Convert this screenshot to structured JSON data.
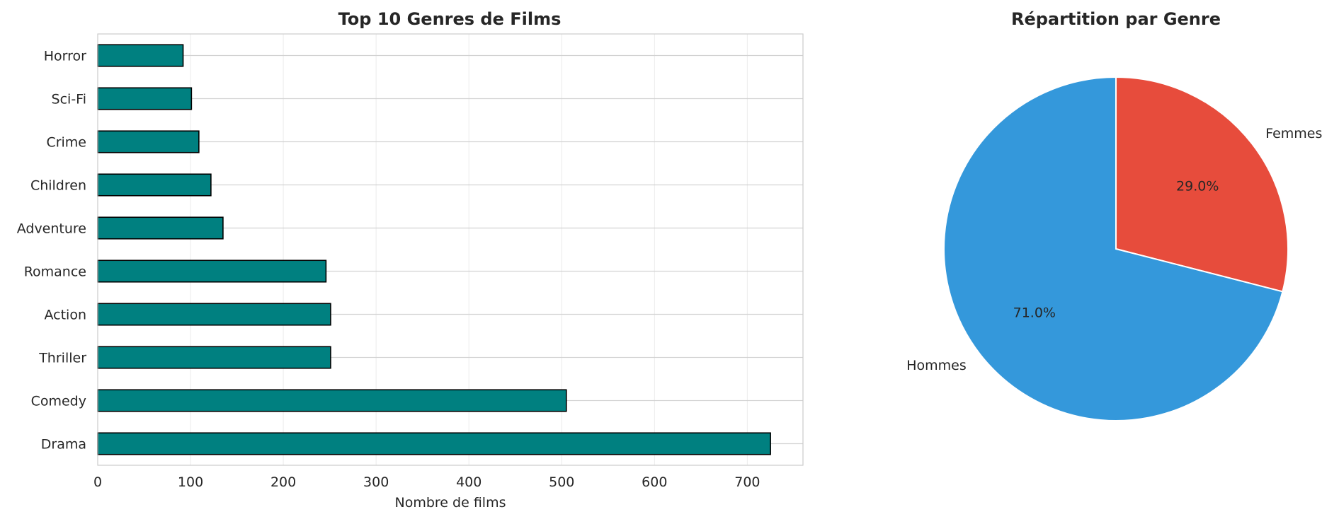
{
  "chart_data": [
    {
      "type": "bar",
      "orientation": "horizontal",
      "title": "Top 10 Genres de Films",
      "xlabel": "Nombre de films",
      "ylabel": "",
      "categories": [
        "Drama",
        "Comedy",
        "Thriller",
        "Action",
        "Romance",
        "Adventure",
        "Children",
        "Crime",
        "Sci-Fi",
        "Horror"
      ],
      "values": [
        725,
        505,
        251,
        251,
        246,
        135,
        122,
        109,
        101,
        92
      ],
      "xlim": [
        0,
        760
      ],
      "xticks": [
        0,
        100,
        200,
        300,
        400,
        500,
        600,
        700
      ],
      "grid": true,
      "bar_color": "#008080",
      "edge_color": "#000000"
    },
    {
      "type": "pie",
      "title": "Répartition par Genre",
      "labels": [
        "Femmes",
        "Hommes"
      ],
      "values": [
        29.0,
        71.0
      ],
      "percent_labels": [
        "29.0%",
        "71.0%"
      ],
      "colors": [
        "#e74c3c",
        "#3498db"
      ],
      "start_angle_deg": 90,
      "direction": "clockwise"
    }
  ]
}
